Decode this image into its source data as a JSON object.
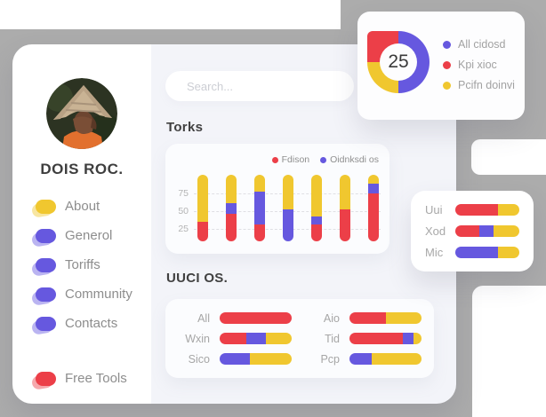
{
  "colors": {
    "red": "#ec3f48",
    "purple": "#6658df",
    "yellow": "#f0c72f",
    "backdrop_gray": "#acacac",
    "panel": "#f3f4f9"
  },
  "profile": {
    "name": "DOIS ROC.",
    "avatar": "person-in-conical-hat-photo"
  },
  "menu": {
    "items": [
      {
        "label": "About",
        "icon": "blob-icon",
        "icon_color": "#f0c72f"
      },
      {
        "label": "Generol",
        "icon": "blob-icon",
        "icon_color": "#6658df"
      },
      {
        "label": "Toriffs",
        "icon": "blob-icon",
        "icon_color": "#6658df"
      },
      {
        "label": "Community",
        "icon": "blob-icon",
        "icon_color": "#6658df"
      },
      {
        "label": "Contacts",
        "icon": "blob-icon",
        "icon_color": "#6658df"
      }
    ],
    "footer_item": {
      "label": "Free Tools",
      "icon": "blob-icon",
      "icon_color": "#ec3f48"
    }
  },
  "search": {
    "placeholder": "Search..."
  },
  "torks": {
    "title": "Torks",
    "legend": [
      {
        "label": "Fdison",
        "color": "#ec3f48"
      },
      {
        "label": "Oidnksdi os",
        "color": "#6658df"
      }
    ],
    "ytick_labels": [
      "75",
      "50",
      "25"
    ]
  },
  "uuci": {
    "title": "UUCI OS."
  },
  "donut_card": {
    "value": "25",
    "legend": [
      {
        "label": "All cidosd",
        "color": "#6658df"
      },
      {
        "label": "Kpi xioc",
        "color": "#ec3f48"
      },
      {
        "label": "Pcifn doinvi",
        "color": "#f0c72f"
      }
    ]
  },
  "chart_data": [
    {
      "id": "kpi-donut",
      "type": "pie",
      "donut": true,
      "center_label": "25",
      "legend_position": "right",
      "slices_clockwise_from_top": [
        {
          "label": "All cidosd",
          "value": 50,
          "color": "purple"
        },
        {
          "label": "Pcifn doinvi",
          "value": 25,
          "color": "yellow"
        },
        {
          "label": "Kpi xioc",
          "value": 25,
          "color": "red",
          "style": "square-outer-corner-top-left"
        }
      ]
    },
    {
      "id": "torks",
      "type": "bar",
      "stacked": true,
      "title": "Torks",
      "ylim": [
        0,
        100
      ],
      "yticks": [
        25,
        50,
        75
      ],
      "grid": "dashed-horizontal",
      "legend": [
        "Fdison",
        "Oidnksdi os"
      ],
      "categories": [
        "",
        "",
        "",
        "",
        "",
        "",
        ""
      ],
      "series": [
        {
          "name": "Fdison",
          "color": "red",
          "values": [
            30,
            42,
            25,
            0,
            25,
            48,
            72
          ]
        },
        {
          "name": "Oidnksdi os",
          "color": "purple",
          "values": [
            0,
            16,
            50,
            48,
            13,
            0,
            15
          ]
        },
        {
          "name": "remainder",
          "color": "yellow",
          "values": [
            70,
            42,
            25,
            52,
            62,
            52,
            13
          ]
        }
      ]
    },
    {
      "id": "uuci-os",
      "type": "bar",
      "orientation": "horizontal",
      "stacked": true,
      "title": "UUCI OS.",
      "rows": [
        {
          "label": "All",
          "segments": [
            {
              "color": "red",
              "value": 100
            }
          ]
        },
        {
          "label": "Wxin",
          "segments": [
            {
              "color": "red",
              "value": 37
            },
            {
              "color": "purple",
              "value": 27
            },
            {
              "color": "yellow",
              "value": 36
            }
          ]
        },
        {
          "label": "Sico",
          "segments": [
            {
              "color": "purple",
              "value": 42
            },
            {
              "color": "yellow",
              "value": 58
            }
          ]
        },
        {
          "label": "Aio",
          "segments": [
            {
              "color": "red",
              "value": 51
            },
            {
              "color": "yellow",
              "value": 49
            }
          ]
        },
        {
          "label": "Tid",
          "segments": [
            {
              "color": "red",
              "value": 74
            },
            {
              "color": "purple",
              "value": 15
            },
            {
              "color": "yellow",
              "value": 11
            }
          ]
        },
        {
          "label": "Pcp",
          "segments": [
            {
              "color": "purple",
              "value": 31
            },
            {
              "color": "yellow",
              "value": 69
            }
          ]
        }
      ]
    },
    {
      "id": "side-panel",
      "type": "bar",
      "orientation": "horizontal",
      "stacked": true,
      "rows": [
        {
          "label": "Uui",
          "segments": [
            {
              "color": "red",
              "value": 66
            },
            {
              "color": "yellow",
              "value": 34
            }
          ]
        },
        {
          "label": "Xod",
          "segments": [
            {
              "color": "red",
              "value": 38
            },
            {
              "color": "purple",
              "value": 22
            },
            {
              "color": "yellow",
              "value": 40
            }
          ]
        },
        {
          "label": "Mic",
          "segments": [
            {
              "color": "purple",
              "value": 67
            },
            {
              "color": "yellow",
              "value": 33
            }
          ]
        }
      ]
    }
  ]
}
